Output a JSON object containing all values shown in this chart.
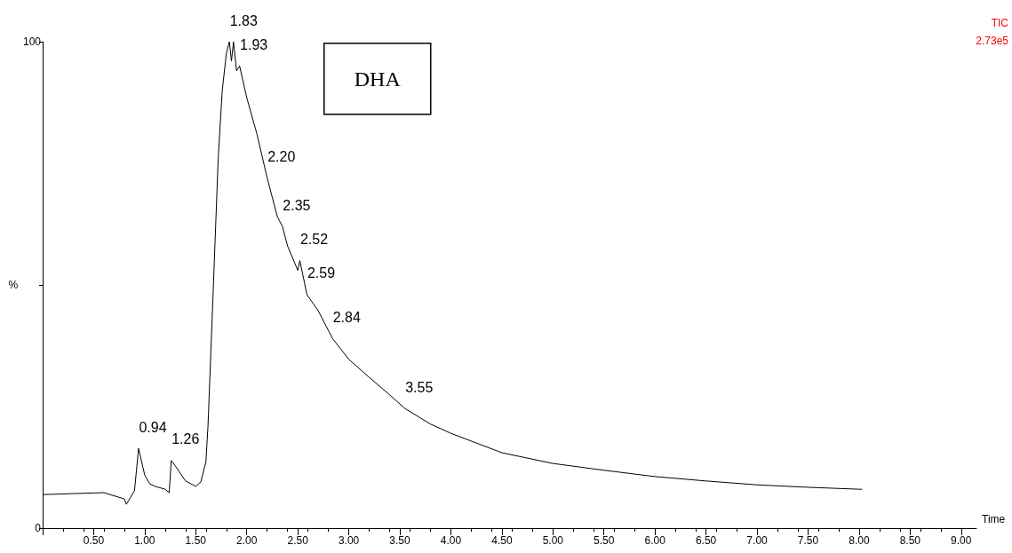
{
  "chart_data": {
    "type": "line",
    "xlabel": "Time",
    "ylabel": "%",
    "annotations": [
      "DHA",
      "TIC",
      "2.73e5",
      {
        "text": "0.94",
        "x": 0.94,
        "y": 16.4
      },
      {
        "text": "1.26",
        "x": 1.26,
        "y": 13.9
      },
      {
        "text": "1.83",
        "x": 1.83,
        "y": 100
      },
      {
        "text": "1.93",
        "x": 1.93,
        "y": 95
      },
      {
        "text": "2.20",
        "x": 2.2,
        "y": 72
      },
      {
        "text": "2.35",
        "x": 2.35,
        "y": 62
      },
      {
        "text": "2.52",
        "x": 2.52,
        "y": 55
      },
      {
        "text": "2.59",
        "x": 2.59,
        "y": 48
      },
      {
        "text": "2.84",
        "x": 2.84,
        "y": 39
      },
      {
        "text": "3.55",
        "x": 3.55,
        "y": 24.6
      }
    ],
    "x": [
      0,
      0.3,
      0.6,
      0.8,
      0.82,
      0.9,
      0.94,
      1.0,
      1.05,
      1.1,
      1.2,
      1.24,
      1.26,
      1.3,
      1.4,
      1.5,
      1.55,
      1.6,
      1.62,
      1.67,
      1.72,
      1.76,
      1.8,
      1.83,
      1.85,
      1.87,
      1.9,
      1.93,
      2.0,
      2.1,
      2.2,
      2.3,
      2.35,
      2.4,
      2.5,
      2.52,
      2.59,
      2.7,
      2.84,
      3.0,
      3.2,
      3.4,
      3.55,
      3.8,
      4.0,
      4.5,
      5.0,
      5.5,
      6.0,
      6.5,
      7.0,
      7.5,
      8.0,
      8.03
    ],
    "series": [
      {
        "color": "#000000",
        "values": [
          6.9,
          7.1,
          7.3,
          6.0,
          4.9,
          7.7,
          16.4,
          10.9,
          9.1,
          8.6,
          8.0,
          7.3,
          13.9,
          12.8,
          9.7,
          8.6,
          9.5,
          13.7,
          21,
          48,
          76,
          90,
          97.6,
          100,
          96,
          100,
          94,
          95,
          88.5,
          81,
          72,
          64,
          62,
          58,
          53,
          55,
          48,
          44.7,
          39,
          34.7,
          31,
          27.4,
          24.6,
          21.4,
          19.5,
          15.5,
          13.3,
          11.9,
          10.6,
          9.7,
          8.9,
          8.4,
          8.0,
          8.0
        ]
      }
    ],
    "xlim": [
      0,
      9.15
    ],
    "xticks": [
      {
        "value": 0,
        "label": null
      },
      {
        "value": 0.5,
        "label": "0.50"
      },
      {
        "value": 1,
        "label": "1.00"
      },
      {
        "value": 1.5,
        "label": "1.50"
      },
      {
        "value": 2,
        "label": "2.00"
      },
      {
        "value": 2.5,
        "label": "2.50"
      },
      {
        "value": 3,
        "label": "3.00"
      },
      {
        "value": 3.5,
        "label": "3.50"
      },
      {
        "value": 4,
        "label": "4.00"
      },
      {
        "value": 4.5,
        "label": "4.50"
      },
      {
        "value": 5,
        "label": "5.00"
      },
      {
        "value": 5.5,
        "label": "5.50"
      },
      {
        "value": 6,
        "label": "6.00"
      },
      {
        "value": 6.5,
        "label": "6.50"
      },
      {
        "value": 7,
        "label": "7.00"
      },
      {
        "value": 7.5,
        "label": "7.50"
      },
      {
        "value": 8,
        "label": "8.00"
      },
      {
        "value": 8.5,
        "label": "8.50"
      },
      {
        "value": 9,
        "label": "9.00"
      }
    ],
    "ylim": [
      0,
      100
    ],
    "yticks": [
      0,
      {
        "value": 50,
        "label": null
      },
      100
    ],
    "grid": false,
    "marker": "none",
    "line_style": "solid"
  }
}
